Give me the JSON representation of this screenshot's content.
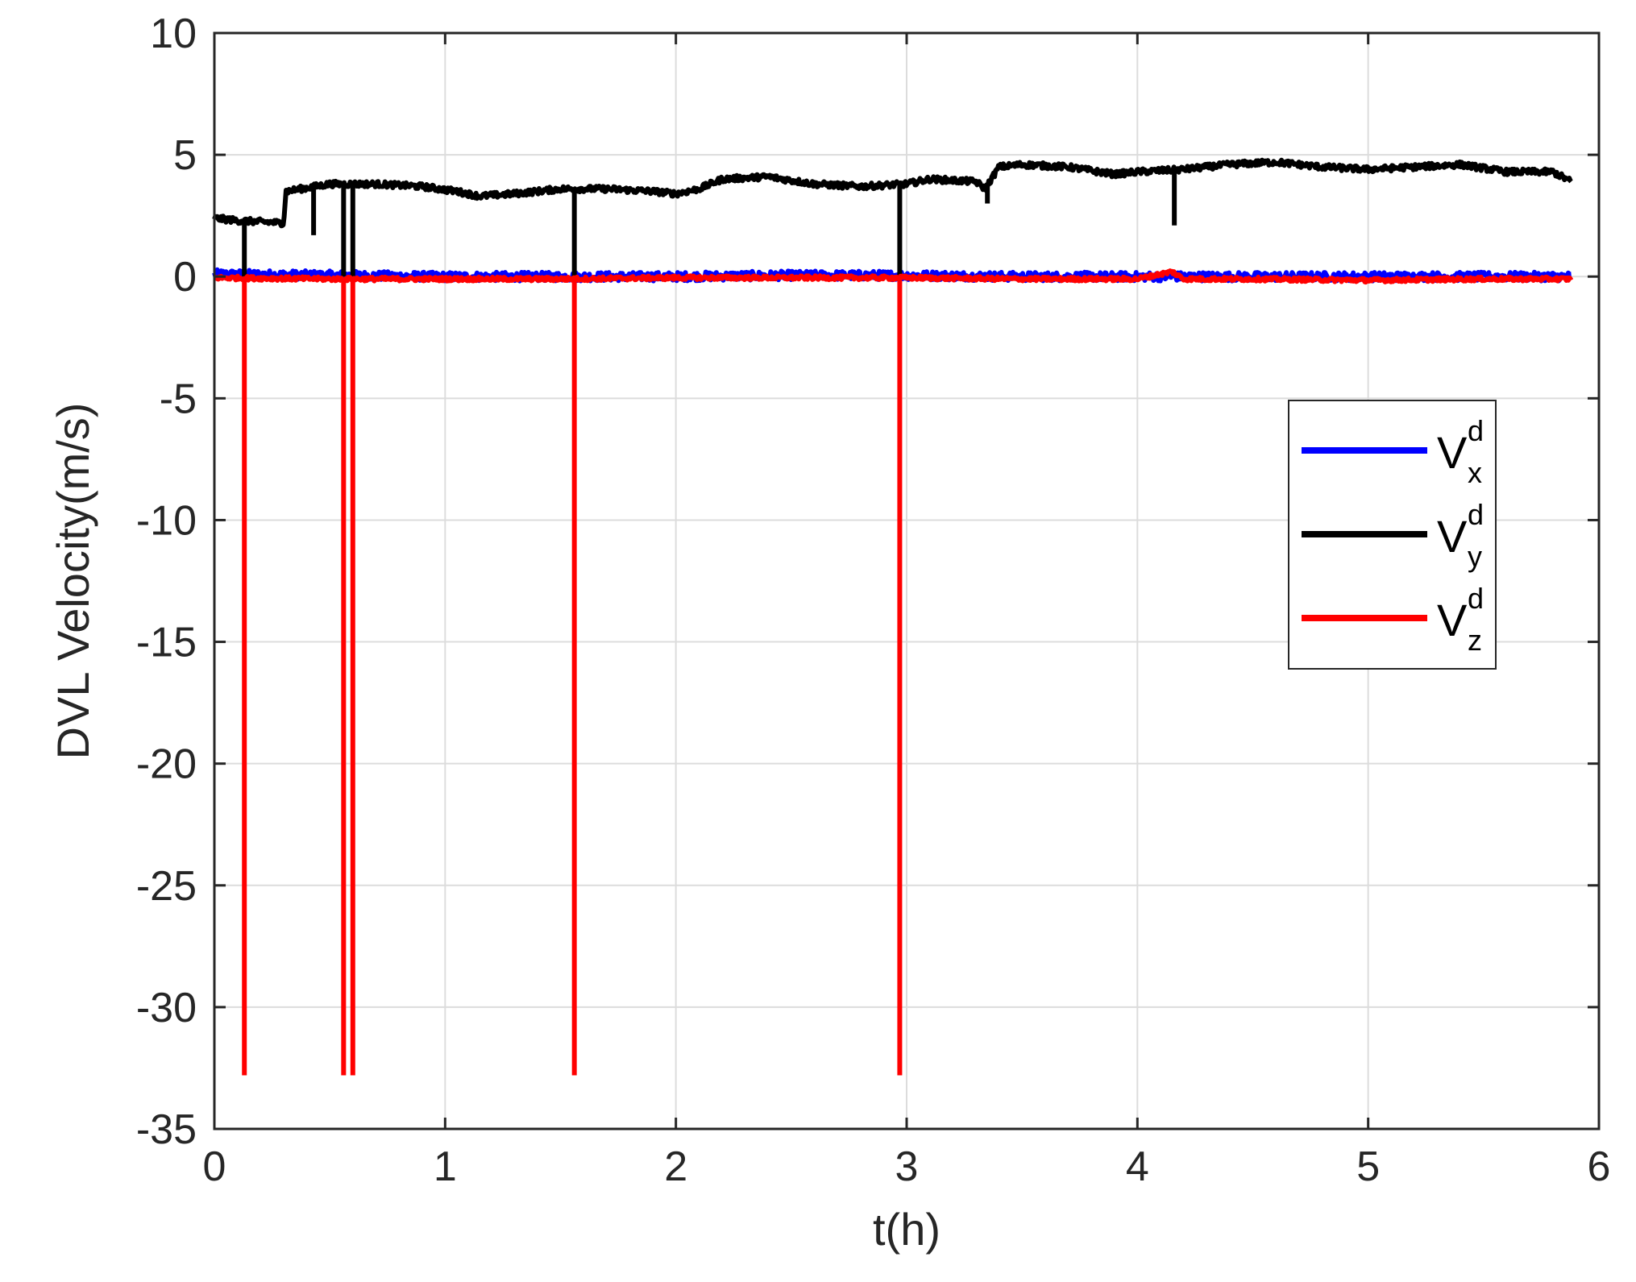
{
  "chart_data": {
    "type": "line",
    "title": "",
    "xlabel": "t(h)",
    "ylabel": "DVL Velocity(m/s)",
    "xlim": [
      0,
      6
    ],
    "ylim": [
      -35,
      10
    ],
    "xticks": [
      0,
      1,
      2,
      3,
      4,
      5,
      6
    ],
    "yticks": [
      10,
      5,
      0,
      -5,
      -10,
      -15,
      -20,
      -25,
      -30,
      -35
    ],
    "grid": true,
    "legend_position": "right",
    "series": [
      {
        "name": "V_x^d",
        "label_base": "V",
        "label_sup": "d",
        "label_sub": "x",
        "color": "#0000ff",
        "noise": 0.18,
        "x": [
          0,
          0.5,
          1.0,
          1.5,
          2.0,
          2.5,
          3.0,
          3.5,
          4.0,
          4.5,
          5.0,
          5.5,
          5.88
        ],
        "y": [
          0.1,
          0.05,
          0.0,
          0.0,
          0.0,
          0.05,
          0.05,
          0.0,
          0.0,
          0.0,
          0.0,
          0.0,
          0.0
        ]
      },
      {
        "name": "V_y^d",
        "label_base": "V",
        "label_sup": "d",
        "label_sub": "y",
        "color": "#000000",
        "noise": 0.12,
        "x": [
          0,
          0.1,
          0.3,
          0.31,
          0.5,
          0.7,
          0.9,
          1.05,
          1.15,
          1.3,
          1.5,
          1.7,
          1.9,
          2.0,
          2.1,
          2.2,
          2.4,
          2.6,
          2.8,
          3.0,
          3.1,
          3.3,
          3.34,
          3.4,
          3.5,
          3.7,
          3.9,
          4.0,
          4.2,
          4.4,
          4.6,
          4.8,
          5.0,
          5.2,
          5.4,
          5.6,
          5.8,
          5.88
        ],
        "y": [
          2.4,
          2.3,
          2.2,
          3.5,
          3.8,
          3.8,
          3.7,
          3.5,
          3.3,
          3.4,
          3.6,
          3.6,
          3.5,
          3.4,
          3.6,
          4.0,
          4.1,
          3.8,
          3.7,
          3.8,
          4.0,
          3.9,
          3.6,
          4.5,
          4.6,
          4.5,
          4.2,
          4.3,
          4.4,
          4.6,
          4.7,
          4.5,
          4.4,
          4.5,
          4.6,
          4.3,
          4.3,
          3.9
        ],
        "spikes": [
          {
            "x": 0.13,
            "y": 0.0
          },
          {
            "x": 0.43,
            "y": 1.7
          },
          {
            "x": 0.56,
            "y": 0.0
          },
          {
            "x": 0.6,
            "y": 0.0
          },
          {
            "x": 1.56,
            "y": 0.0
          },
          {
            "x": 2.97,
            "y": 0.0
          },
          {
            "x": 3.35,
            "y": 3.0
          },
          {
            "x": 4.16,
            "y": 2.1
          }
        ]
      },
      {
        "name": "V_z^d",
        "label_base": "V",
        "label_sup": "d",
        "label_sub": "z",
        "color": "#ff0000",
        "noise": 0.08,
        "x": [
          0,
          0.5,
          1.0,
          1.5,
          2.0,
          2.5,
          3.0,
          3.5,
          4.0,
          4.15,
          4.2,
          4.5,
          5.0,
          5.5,
          5.88
        ],
        "y": [
          -0.05,
          -0.1,
          -0.1,
          -0.1,
          -0.05,
          -0.05,
          -0.05,
          -0.1,
          -0.1,
          0.2,
          -0.1,
          -0.1,
          -0.15,
          -0.1,
          -0.1
        ],
        "spikes": [
          {
            "x": 0.13,
            "y": -32.8
          },
          {
            "x": 0.56,
            "y": -32.8
          },
          {
            "x": 0.6,
            "y": -32.8
          },
          {
            "x": 1.56,
            "y": -32.8
          },
          {
            "x": 2.97,
            "y": -32.8
          }
        ]
      }
    ]
  }
}
